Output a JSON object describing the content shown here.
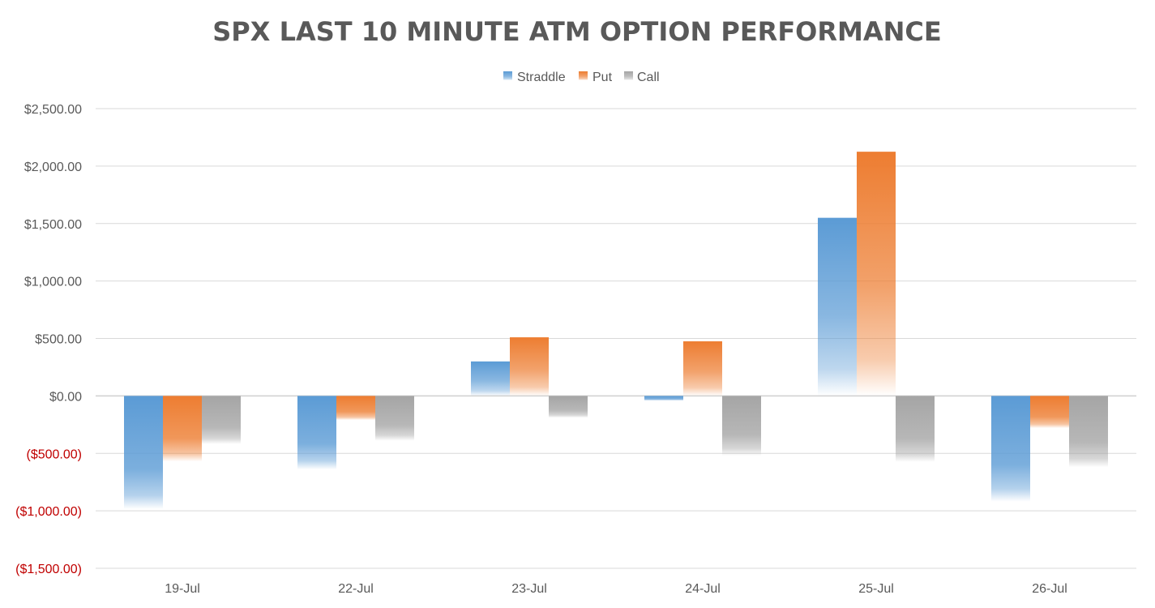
{
  "chart_data": {
    "type": "bar",
    "title": "SPX LAST 10 MINUTE ATM OPTION PERFORMANCE",
    "categories": [
      "19-Jul",
      "22-Jul",
      "23-Jul",
      "24-Jul",
      "25-Jul",
      "26-Jul"
    ],
    "series": [
      {
        "name": "Straddle",
        "color": "#5B9BD5",
        "values": [
          -985,
          -640,
          300,
          -40,
          1550,
          -920
        ]
      },
      {
        "name": "Put",
        "color": "#ED7D31",
        "values": [
          -570,
          -210,
          510,
          475,
          2125,
          -280
        ]
      },
      {
        "name": "Call",
        "color": "#A5A5A5",
        "values": [
          -420,
          -390,
          -190,
          -520,
          -575,
          -620
        ]
      }
    ],
    "ylim": [
      -1500,
      2500
    ],
    "yticks": [
      {
        "value": 2500,
        "label": "$2,500.00"
      },
      {
        "value": 2000,
        "label": "$2,000.00"
      },
      {
        "value": 1500,
        "label": "$1,500.00"
      },
      {
        "value": 1000,
        "label": "$1,000.00"
      },
      {
        "value": 500,
        "label": "$500.00"
      },
      {
        "value": 0,
        "label": "$0.00"
      },
      {
        "value": -500,
        "label": "($500.00)"
      },
      {
        "value": -1000,
        "label": "($1,000.00)"
      },
      {
        "value": -1500,
        "label": "($1,500.00)"
      }
    ],
    "negative_tick_color": "#C00000",
    "positive_tick_color": "#595959",
    "legend_position": "top-center",
    "grid": true,
    "xlabel": "",
    "ylabel": ""
  }
}
